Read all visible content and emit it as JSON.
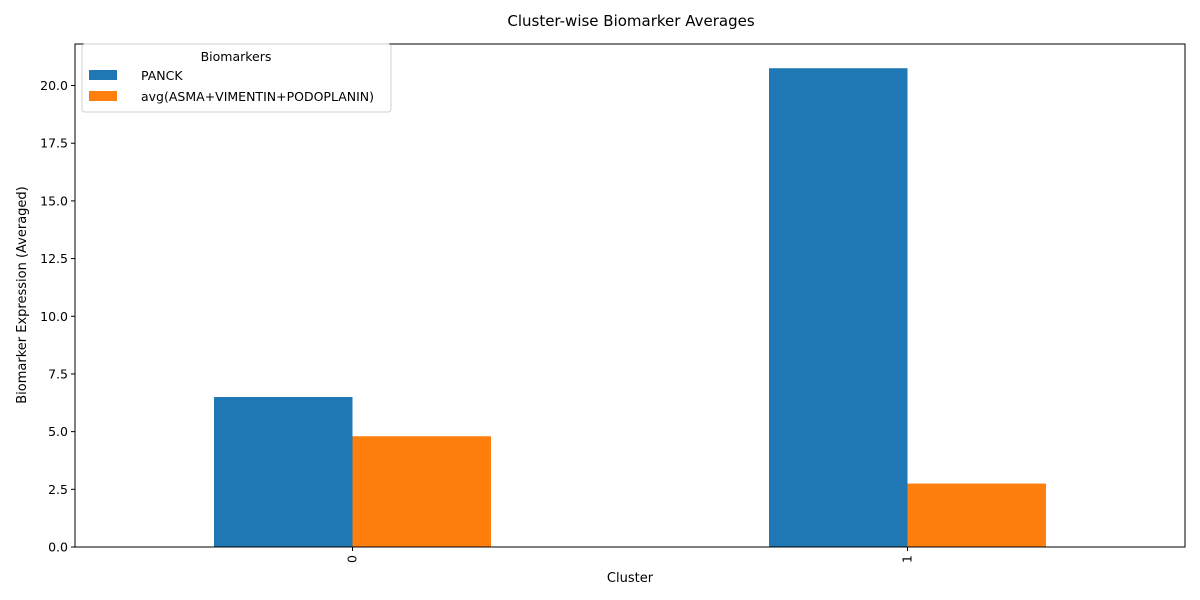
{
  "chart_data": {
    "type": "bar",
    "title": "Cluster-wise Biomarker Averages",
    "xlabel": "Cluster",
    "ylabel": "Biomarker Expression (Averaged)",
    "categories": [
      "0",
      "1"
    ],
    "series": [
      {
        "name": "PANCK",
        "values": [
          6.5,
          20.75
        ],
        "color": "#1f77b4"
      },
      {
        "name": "avg(ASMA+VIMENTIN+PODOPLANIN)",
        "values": [
          4.8,
          2.75
        ],
        "color": "#ff7f0e"
      }
    ],
    "ylim": [
      0,
      21.8
    ],
    "yticks": [
      0.0,
      2.5,
      5.0,
      7.5,
      10.0,
      12.5,
      15.0,
      17.5,
      20.0
    ],
    "ytick_labels": [
      "0.0",
      "2.5",
      "5.0",
      "7.5",
      "10.0",
      "12.5",
      "15.0",
      "17.5",
      "20.0"
    ],
    "legend": {
      "title": "Biomarkers",
      "position": "top-left"
    },
    "grid": false
  }
}
